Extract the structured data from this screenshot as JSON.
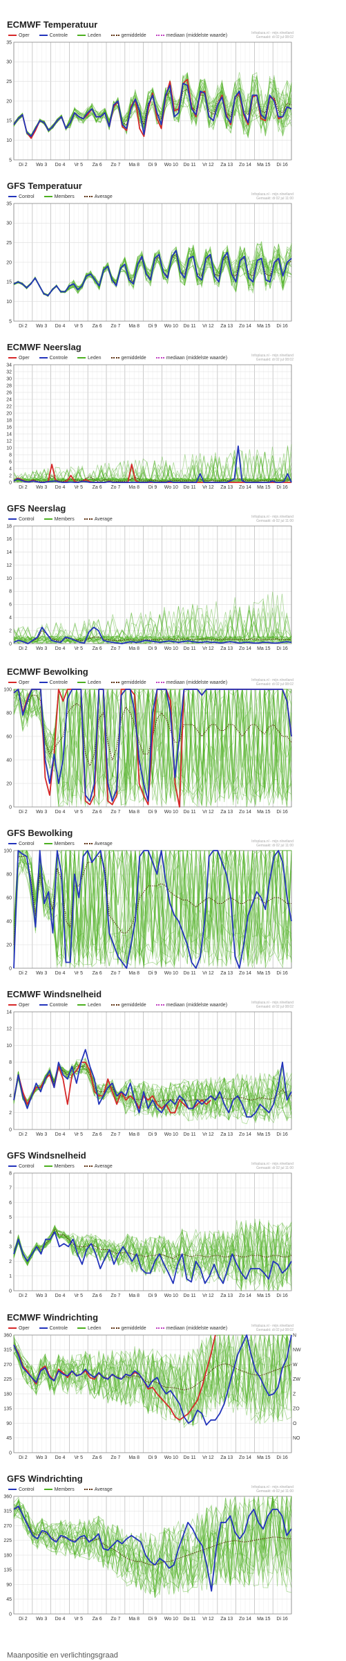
{
  "credit": {
    "line1": "Infoplaza.nl - mijn.nlnetland",
    "line2": "Gemaakt: di 02 jul 08:02"
  },
  "credit_gfs": {
    "line1": "Infoplaza.nl - mijn.nlnetland",
    "line2": "Gemaakt: di 02 jul 11:00"
  },
  "days": [
    "Di 2",
    "Wo 3",
    "Do 4",
    "Vr 5",
    "Za 6",
    "Zo 7",
    "Ma 8",
    "Di 9",
    "Wo 10",
    "Do 11",
    "Vr 12",
    "Za 13",
    "Zo 14",
    "Ma 15",
    "Di 16"
  ],
  "colors": {
    "oper": "#d62728",
    "control": "#2233bb",
    "member": "#4caf20",
    "mean": "#5a2d0c",
    "median": "#c040c0"
  },
  "legend_ecmwf": [
    "Oper",
    "Controle",
    "Leden",
    "gemiddelde",
    "mediaan (middelste waarde)"
  ],
  "legend_gfs": [
    "Control",
    "Members",
    "Average"
  ],
  "footer": "Maanpositie en verlichtingsgraad"
}
